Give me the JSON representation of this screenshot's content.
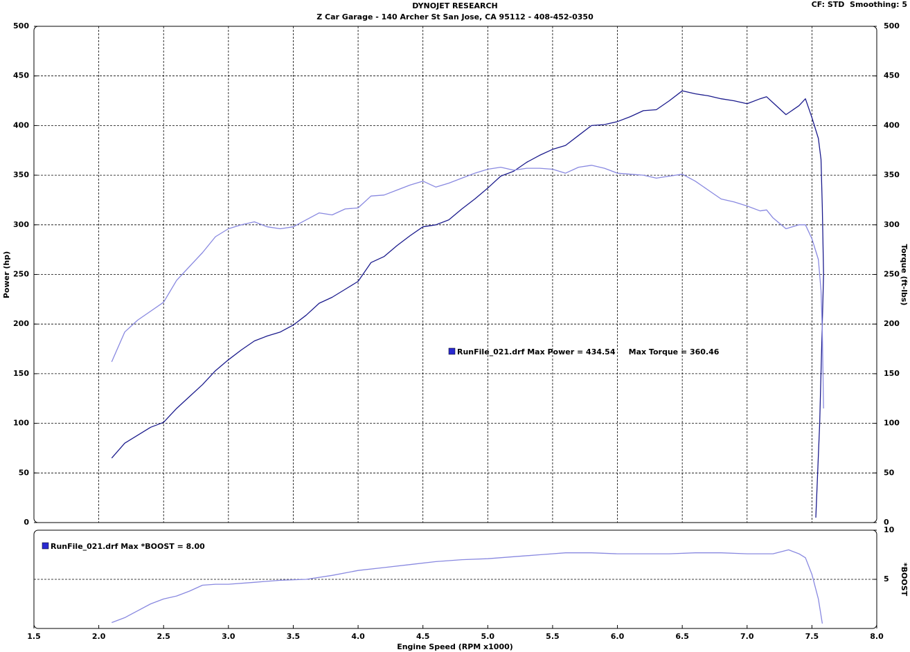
{
  "header": {
    "title": "DYNOJET RESEARCH",
    "subtitle": "Z Car Garage - 140 Archer St San Jose, CA 95112 - 408-452-0350",
    "settings": "CF: STD  Smoothing: 5"
  },
  "chart_data": [
    {
      "type": "line",
      "ylabel": "Power (hp)",
      "y2label": "Torque (ft-lbs)",
      "annotation": "RunFile_021.drf Max Power = 434.54     Max Torque = 360.46",
      "xlim": [
        1.5,
        8.0
      ],
      "ylim": [
        0,
        500
      ],
      "yticks": [
        0,
        50,
        100,
        150,
        200,
        250,
        300,
        350,
        400,
        450,
        500
      ],
      "y2lim": [
        0,
        500
      ],
      "y2ticks": [
        0,
        50,
        100,
        150,
        200,
        250,
        300,
        350,
        400,
        450,
        500
      ],
      "grid": true,
      "x": [
        2.1,
        2.2,
        2.3,
        2.4,
        2.5,
        2.6,
        2.7,
        2.8,
        2.9,
        3.0,
        3.1,
        3.2,
        3.3,
        3.4,
        3.5,
        3.6,
        3.7,
        3.8,
        3.9,
        4.0,
        4.1,
        4.2,
        4.3,
        4.4,
        4.5,
        4.6,
        4.7,
        4.8,
        4.9,
        5.0,
        5.1,
        5.2,
        5.3,
        5.4,
        5.5,
        5.6,
        5.7,
        5.8,
        5.9,
        6.0,
        6.1,
        6.2,
        6.3,
        6.4,
        6.5,
        6.6,
        6.7,
        6.8,
        6.9,
        7.0,
        7.1,
        7.15,
        7.2,
        7.3,
        7.4,
        7.45,
        7.5,
        7.55,
        7.57,
        7.58,
        7.59,
        7.56,
        7.53
      ],
      "series": [
        {
          "color": "#1a1a8c",
          "axis": "y",
          "values": [
            65,
            80,
            88,
            96,
            101,
            115,
            127,
            139,
            153,
            164,
            174,
            183,
            188,
            192,
            199,
            209,
            221,
            227,
            235,
            243,
            262,
            268,
            279,
            289,
            298,
            300,
            305,
            316,
            326,
            337,
            349,
            354,
            363,
            370,
            376,
            380,
            390,
            400,
            401,
            404,
            409,
            415,
            416,
            425,
            435,
            432,
            430,
            427,
            425,
            422,
            427,
            429,
            423,
            411,
            420,
            427,
            408,
            387,
            366,
            317,
            250,
            100,
            5
          ]
        },
        {
          "color": "#8888e0",
          "axis": "y2",
          "values": [
            162,
            192,
            204,
            213,
            222,
            244,
            258,
            272,
            288,
            296,
            300,
            303,
            298,
            296,
            298,
            305,
            312,
            310,
            316,
            317,
            329,
            330,
            335,
            340,
            344,
            338,
            342,
            347,
            352,
            356,
            358,
            355,
            357,
            357,
            356,
            352,
            358,
            360,
            357,
            352,
            351,
            350,
            347,
            349,
            351,
            344,
            335,
            326,
            323,
            319,
            314,
            315,
            307,
            296,
            300,
            300,
            286,
            265,
            234,
            192,
            115,
            null,
            null
          ]
        }
      ]
    },
    {
      "type": "line",
      "y2label": "*BOOST",
      "xlabel": "Engine Speed (RPM x1000)",
      "annotation": "RunFile_021.drf Max *BOOST = 8.00",
      "xlim": [
        1.5,
        8.0
      ],
      "xticks": [
        1.5,
        {
          "value": 2,
          "label": "2.0"
        },
        2.5,
        {
          "value": 3,
          "label": "3.0"
        },
        3.5,
        {
          "value": 4,
          "label": "4.0"
        },
        4.5,
        {
          "value": 5,
          "label": "5.0"
        },
        5.5,
        {
          "value": 6,
          "label": "6.0"
        },
        6.5,
        {
          "value": 7,
          "label": "7.0"
        },
        7.5,
        {
          "value": 8,
          "label": "8.0"
        }
      ],
      "y2lim": [
        0,
        10
      ],
      "y2ticks": [
        5,
        10
      ],
      "grid": "y",
      "x": [
        2.1,
        2.2,
        2.3,
        2.4,
        2.5,
        2.6,
        2.7,
        2.8,
        2.9,
        3.0,
        3.2,
        3.4,
        3.6,
        3.8,
        4.0,
        4.2,
        4.4,
        4.6,
        4.8,
        5.0,
        5.2,
        5.4,
        5.6,
        5.8,
        6.0,
        6.2,
        6.4,
        6.6,
        6.8,
        7.0,
        7.2,
        7.32,
        7.4,
        7.45,
        7.5,
        7.55,
        7.58
      ],
      "series": [
        {
          "color": "#8888e0",
          "axis": "y2",
          "values": [
            0.6,
            1.1,
            1.8,
            2.5,
            3.0,
            3.3,
            3.8,
            4.4,
            4.5,
            4.5,
            4.7,
            4.9,
            5.0,
            5.4,
            5.9,
            6.2,
            6.5,
            6.8,
            7.0,
            7.1,
            7.3,
            7.5,
            7.7,
            7.7,
            7.6,
            7.6,
            7.6,
            7.7,
            7.7,
            7.6,
            7.6,
            8.0,
            7.6,
            7.2,
            5.5,
            3.0,
            0.5
          ]
        }
      ]
    }
  ]
}
